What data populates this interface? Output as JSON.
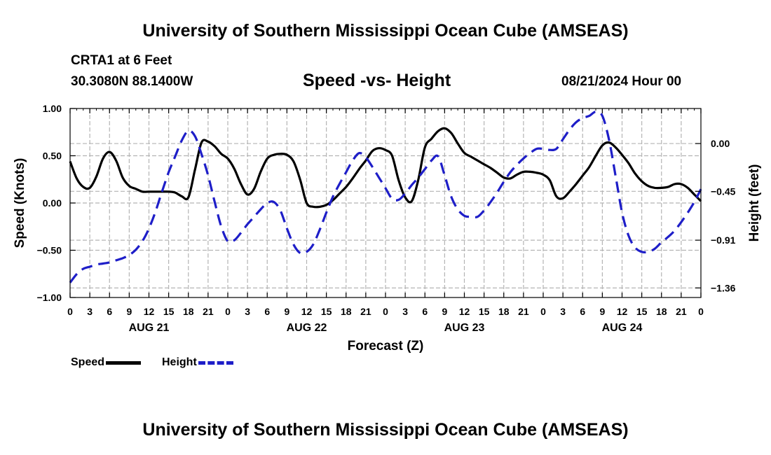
{
  "header": {
    "main_title": "University of Southern Mississippi Ocean Cube (AMSEAS)",
    "station": "CRTA1 at 6 Feet",
    "coordinates": "30.3080N  88.1400W",
    "chart_title": "Speed -vs- Height",
    "datetime": "08/21/2024 Hour 00",
    "footer_title": "University of Southern Mississippi Ocean Cube (AMSEAS)"
  },
  "colors": {
    "speed": "#000000",
    "height": "#1e1ec8",
    "grid": "#b4b4b4"
  },
  "legend": {
    "speed_label": "Speed",
    "height_label": "Height"
  },
  "chart_data": {
    "type": "line",
    "title": "Speed -vs- Height",
    "xlabel": "Forecast (Z)",
    "ylabel_left": "Speed (Knots)",
    "ylabel_right": "Height (feet)",
    "x_range_hours": [
      0,
      96
    ],
    "x_tick_labels": [
      "0",
      "3",
      "6",
      "9",
      "12",
      "15",
      "18",
      "21",
      "0",
      "3",
      "6",
      "9",
      "12",
      "15",
      "18",
      "21",
      "0",
      "3",
      "6",
      "9",
      "12",
      "15",
      "18",
      "21",
      "0",
      "3",
      "6",
      "9",
      "12",
      "15",
      "18",
      "21",
      "0"
    ],
    "date_labels": [
      {
        "label": "AUG 21",
        "hour": 12
      },
      {
        "label": "AUG 22",
        "hour": 36
      },
      {
        "label": "AUG 23",
        "hour": 60
      },
      {
        "label": "AUG 24",
        "hour": 84
      }
    ],
    "left_axis": {
      "ylim": [
        -1.0,
        1.0
      ],
      "ticks": [
        1.0,
        0.5,
        0.0,
        -0.5,
        -1.0
      ],
      "tick_labels": [
        "1.00",
        "0.50",
        "0.00",
        "−0.50",
        "−1.00"
      ]
    },
    "right_axis": {
      "ylim": [
        -1.45,
        0.33
      ],
      "ticks": [
        0.0,
        -0.45,
        -0.91,
        -1.36
      ],
      "tick_labels": [
        "0.00",
        "−0.45",
        "−0.91",
        "−1.36"
      ]
    },
    "grid": true,
    "series": [
      {
        "name": "Speed",
        "axis": "left",
        "style": "solid",
        "points": [
          [
            0,
            0.44
          ],
          [
            1,
            0.26
          ],
          [
            2,
            0.17
          ],
          [
            3,
            0.16
          ],
          [
            4,
            0.28
          ],
          [
            5,
            0.47
          ],
          [
            6,
            0.54
          ],
          [
            7,
            0.45
          ],
          [
            8,
            0.27
          ],
          [
            9,
            0.18
          ],
          [
            10,
            0.15
          ],
          [
            11,
            0.12
          ],
          [
            12,
            0.12
          ],
          [
            13,
            0.12
          ],
          [
            14,
            0.12
          ],
          [
            15,
            0.12
          ],
          [
            16,
            0.11
          ],
          [
            17,
            0.07
          ],
          [
            18,
            0.06
          ],
          [
            19,
            0.35
          ],
          [
            20,
            0.64
          ],
          [
            21,
            0.65
          ],
          [
            22,
            0.6
          ],
          [
            23,
            0.52
          ],
          [
            24,
            0.47
          ],
          [
            25,
            0.36
          ],
          [
            26,
            0.2
          ],
          [
            27,
            0.09
          ],
          [
            28,
            0.15
          ],
          [
            29,
            0.33
          ],
          [
            30,
            0.47
          ],
          [
            31,
            0.51
          ],
          [
            32,
            0.52
          ],
          [
            33,
            0.51
          ],
          [
            34,
            0.44
          ],
          [
            35,
            0.25
          ],
          [
            36,
            0.0
          ],
          [
            37,
            -0.04
          ],
          [
            38,
            -0.04
          ],
          [
            39,
            -0.02
          ],
          [
            40,
            0.03
          ],
          [
            41,
            0.1
          ],
          [
            42,
            0.17
          ],
          [
            43,
            0.26
          ],
          [
            44,
            0.36
          ],
          [
            45,
            0.45
          ],
          [
            46,
            0.55
          ],
          [
            47,
            0.58
          ],
          [
            48,
            0.56
          ],
          [
            49,
            0.5
          ],
          [
            50,
            0.24
          ],
          [
            51,
            0.06
          ],
          [
            52,
            0.02
          ],
          [
            53,
            0.25
          ],
          [
            54,
            0.59
          ],
          [
            55,
            0.68
          ],
          [
            56,
            0.76
          ],
          [
            57,
            0.79
          ],
          [
            58,
            0.74
          ],
          [
            59,
            0.63
          ],
          [
            60,
            0.53
          ],
          [
            61,
            0.49
          ],
          [
            62,
            0.45
          ],
          [
            63,
            0.41
          ],
          [
            64,
            0.37
          ],
          [
            65,
            0.32
          ],
          [
            66,
            0.27
          ],
          [
            67,
            0.26
          ],
          [
            68,
            0.3
          ],
          [
            69,
            0.33
          ],
          [
            70,
            0.33
          ],
          [
            71,
            0.32
          ],
          [
            72,
            0.3
          ],
          [
            73,
            0.24
          ],
          [
            74,
            0.07
          ],
          [
            75,
            0.05
          ],
          [
            76,
            0.12
          ],
          [
            77,
            0.2
          ],
          [
            78,
            0.29
          ],
          [
            79,
            0.38
          ],
          [
            80,
            0.5
          ],
          [
            81,
            0.61
          ],
          [
            82,
            0.64
          ],
          [
            83,
            0.59
          ],
          [
            84,
            0.51
          ],
          [
            85,
            0.42
          ],
          [
            86,
            0.31
          ],
          [
            87,
            0.23
          ],
          [
            88,
            0.18
          ],
          [
            89,
            0.16
          ],
          [
            90,
            0.16
          ],
          [
            91,
            0.17
          ],
          [
            92,
            0.2
          ],
          [
            93,
            0.2
          ],
          [
            94,
            0.16
          ],
          [
            95,
            0.09
          ],
          [
            96,
            0.02
          ]
        ]
      },
      {
        "name": "Height",
        "axis": "right",
        "style": "dashed",
        "points": [
          [
            0,
            -1.31
          ],
          [
            1,
            -1.23
          ],
          [
            2,
            -1.18
          ],
          [
            3,
            -1.16
          ],
          [
            4,
            -1.14
          ],
          [
            5,
            -1.13
          ],
          [
            6,
            -1.12
          ],
          [
            7,
            -1.1
          ],
          [
            8,
            -1.08
          ],
          [
            9,
            -1.05
          ],
          [
            10,
            -1.0
          ],
          [
            11,
            -0.92
          ],
          [
            12,
            -0.8
          ],
          [
            13,
            -0.64
          ],
          [
            14,
            -0.45
          ],
          [
            15,
            -0.27
          ],
          [
            16,
            -0.12
          ],
          [
            17,
            0.03
          ],
          [
            18,
            0.12
          ],
          [
            19,
            0.07
          ],
          [
            20,
            -0.1
          ],
          [
            21,
            -0.3
          ],
          [
            22,
            -0.55
          ],
          [
            23,
            -0.78
          ],
          [
            24,
            -0.92
          ],
          [
            25,
            -0.91
          ],
          [
            26,
            -0.84
          ],
          [
            27,
            -0.76
          ],
          [
            28,
            -0.69
          ],
          [
            29,
            -0.62
          ],
          [
            30,
            -0.56
          ],
          [
            31,
            -0.55
          ],
          [
            32,
            -0.63
          ],
          [
            33,
            -0.8
          ],
          [
            34,
            -0.95
          ],
          [
            35,
            -1.03
          ],
          [
            36,
            -1.02
          ],
          [
            37,
            -0.95
          ],
          [
            38,
            -0.81
          ],
          [
            39,
            -0.65
          ],
          [
            40,
            -0.5
          ],
          [
            41,
            -0.38
          ],
          [
            42,
            -0.27
          ],
          [
            43,
            -0.16
          ],
          [
            44,
            -0.09
          ],
          [
            45,
            -0.13
          ],
          [
            46,
            -0.22
          ],
          [
            47,
            -0.32
          ],
          [
            48,
            -0.42
          ],
          [
            49,
            -0.52
          ],
          [
            50,
            -0.53
          ],
          [
            51,
            -0.47
          ],
          [
            52,
            -0.39
          ],
          [
            53,
            -0.32
          ],
          [
            54,
            -0.24
          ],
          [
            55,
            -0.16
          ],
          [
            56,
            -0.12
          ],
          [
            57,
            -0.3
          ],
          [
            58,
            -0.5
          ],
          [
            59,
            -0.62
          ],
          [
            60,
            -0.68
          ],
          [
            61,
            -0.69
          ],
          [
            62,
            -0.69
          ],
          [
            63,
            -0.63
          ],
          [
            64,
            -0.55
          ],
          [
            65,
            -0.46
          ],
          [
            66,
            -0.36
          ],
          [
            67,
            -0.27
          ],
          [
            68,
            -0.2
          ],
          [
            69,
            -0.14
          ],
          [
            70,
            -0.09
          ],
          [
            71,
            -0.05
          ],
          [
            72,
            -0.05
          ],
          [
            73,
            -0.06
          ],
          [
            74,
            -0.05
          ],
          [
            75,
            0.04
          ],
          [
            76,
            0.13
          ],
          [
            77,
            0.2
          ],
          [
            78,
            0.24
          ],
          [
            79,
            0.26
          ],
          [
            80,
            0.3
          ],
          [
            81,
            0.26
          ],
          [
            82,
            0.04
          ],
          [
            83,
            -0.3
          ],
          [
            84,
            -0.65
          ],
          [
            85,
            -0.87
          ],
          [
            86,
            -0.98
          ],
          [
            87,
            -1.02
          ],
          [
            88,
            -1.02
          ],
          [
            89,
            -0.99
          ],
          [
            90,
            -0.93
          ],
          [
            91,
            -0.88
          ],
          [
            92,
            -0.82
          ],
          [
            93,
            -0.74
          ],
          [
            94,
            -0.65
          ],
          [
            95,
            -0.55
          ],
          [
            96,
            -0.43
          ]
        ]
      }
    ]
  }
}
